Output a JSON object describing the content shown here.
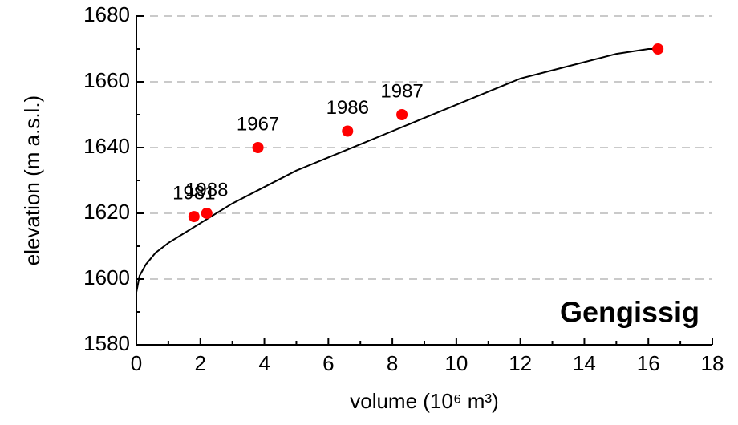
{
  "chart_data": {
    "type": "scatter",
    "xlabel": "volume (10⁶ m³)",
    "ylabel": "elevation (m a.s.l.)",
    "annotation": "Gengissig",
    "x": [
      1.8,
      2.2,
      3.8,
      6.6,
      8.3,
      16.3
    ],
    "values": [
      1619,
      1620,
      1640,
      1645,
      1650,
      1670
    ],
    "point_labels": [
      "1981",
      "1988",
      "1967",
      "1986",
      "1987",
      null
    ],
    "color": "#ff0000",
    "curve": {
      "color": "#000000",
      "x": [
        0,
        0.1,
        0.3,
        0.6,
        1,
        1.5,
        2,
        3,
        4,
        5,
        6,
        7,
        8,
        9,
        10,
        11,
        12,
        13,
        14,
        15,
        16,
        16.3
      ],
      "values": [
        1596,
        1601,
        1604.5,
        1608,
        1611,
        1614,
        1617,
        1623,
        1628,
        1633,
        1637,
        1641,
        1645,
        1649,
        1653,
        1657,
        1661,
        1663.5,
        1666,
        1668.5,
        1670,
        1670
      ]
    },
    "xlim": [
      0,
      18
    ],
    "xticks": [
      0,
      2,
      4,
      6,
      8,
      10,
      12,
      14,
      16,
      18
    ],
    "xminorticks": [
      1,
      3,
      5,
      7,
      9,
      11,
      13,
      15,
      17
    ],
    "ylim": [
      1580,
      1680
    ],
    "yticks": [
      1580,
      1600,
      1620,
      1640,
      1660,
      1680
    ],
    "yminorticks": [
      1590,
      1610,
      1630,
      1650,
      1670
    ],
    "grid": true
  }
}
